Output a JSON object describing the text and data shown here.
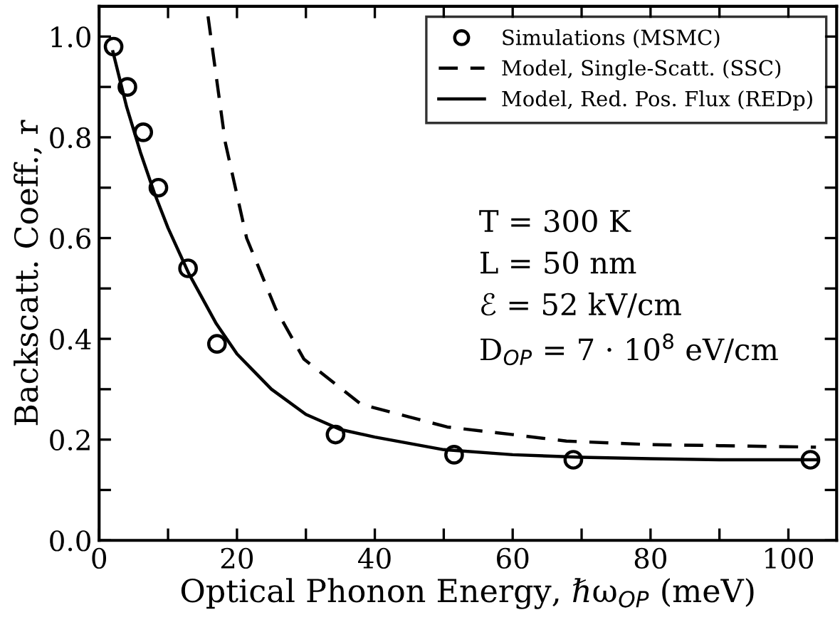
{
  "chart_data": {
    "type": "line",
    "xlabel": "Optical Phonon Energy, ℏω$_{OP}$ (meV)",
    "ylabel": "Backscatt. Coeff., r",
    "xlim": [
      0,
      107
    ],
    "ylim": [
      0,
      1.06
    ],
    "xticks": [
      0,
      {
        "value": 10,
        "label": null
      },
      20,
      {
        "value": 30,
        "label": null
      },
      40,
      {
        "value": 50,
        "label": null
      },
      60,
      {
        "value": 70,
        "label": null
      },
      80,
      {
        "value": 90,
        "label": null
      },
      100
    ],
    "yticks": [
      "0.0",
      {
        "value": 0.1,
        "label": null
      },
      0.2,
      {
        "value": 0.3,
        "label": null
      },
      0.4,
      {
        "value": 0.5,
        "label": null
      },
      0.6,
      {
        "value": 0.7,
        "label": null
      },
      0.8,
      {
        "value": 0.9,
        "label": null
      },
      "1.0"
    ],
    "grid": false,
    "legend": "top right",
    "series": [
      {
        "name": "Simulations (MSMC)",
        "type": "scatter",
        "marker": "circle",
        "color": "#000000",
        "x": [
          2.1,
          4.1,
          6.4,
          8.6,
          12.9,
          17.1,
          34.3,
          51.5,
          68.8,
          103.2
        ],
        "values": [
          0.98,
          0.9,
          0.81,
          0.7,
          0.54,
          0.39,
          0.21,
          0.17,
          0.16,
          0.16
        ]
      },
      {
        "name": "Model, Single-Scatt. (SSC)",
        "line_style": "dashed",
        "color": "#000000",
        "x": [
          15.8,
          18.3,
          21.4,
          25.6,
          29.7,
          38,
          45,
          50.5,
          60,
          67.8,
          80,
          90,
          104
        ],
        "values": [
          1.04,
          0.79,
          0.6,
          0.46,
          0.36,
          0.27,
          0.245,
          0.225,
          0.21,
          0.197,
          0.19,
          0.188,
          0.185
        ]
      },
      {
        "name": "Model, Red. Pos. Flux (REDp)",
        "line_style": "solid",
        "color": "#000000",
        "x": [
          2,
          4,
          6,
          8,
          10,
          13,
          17,
          20,
          25,
          30,
          35,
          40,
          50,
          60,
          70,
          80,
          90,
          100,
          104
        ],
        "values": [
          0.97,
          0.86,
          0.77,
          0.69,
          0.62,
          0.53,
          0.43,
          0.37,
          0.3,
          0.25,
          0.22,
          0.205,
          0.18,
          0.17,
          0.165,
          0.162,
          0.16,
          0.16,
          0.16
        ]
      }
    ],
    "annotations": [
      "T = 300 K",
      "L = 50 nm",
      "ℰ = 52 kV/cm",
      "D$_{OP}$ = 7 · 10$^{8}$ eV/cm"
    ]
  }
}
